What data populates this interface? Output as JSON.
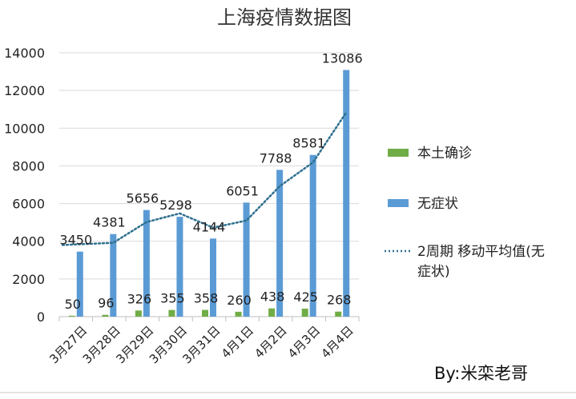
{
  "chart_data": {
    "type": "bar",
    "title": "上海疫情数据图",
    "categories": [
      "3月27日",
      "3月28日",
      "3月29日",
      "3月30日",
      "3月31日",
      "4月1日",
      "4月2日",
      "4月3日",
      "4月4日"
    ],
    "series": [
      {
        "name": "本土确诊",
        "kind": "bar",
        "color": "#70ad47",
        "values": [
          50,
          96,
          326,
          355,
          358,
          260,
          438,
          425,
          268
        ]
      },
      {
        "name": "无症状",
        "kind": "bar",
        "color": "#5b9bd5",
        "values": [
          3450,
          4381,
          5656,
          5298,
          4144,
          6051,
          7788,
          8581,
          13086
        ]
      },
      {
        "name": "2周期 移动平均值(无症状)",
        "kind": "dotted-line",
        "color": "#2e6f8e"
      }
    ],
    "moving_average": {
      "x_start_index": 1,
      "values": [
        3916,
        5019,
        5477,
        4721,
        5098,
        6920,
        8185,
        10834
      ]
    },
    "ylim": [
      0,
      14000
    ],
    "yticks": [
      "0",
      "2000",
      "4000",
      "6000",
      "8000",
      "10000",
      "12000",
      "14000"
    ],
    "grid": "horizontal",
    "legend_position": "right"
  },
  "watermark": {
    "byline": "By:",
    "name": "米栾老哥"
  }
}
